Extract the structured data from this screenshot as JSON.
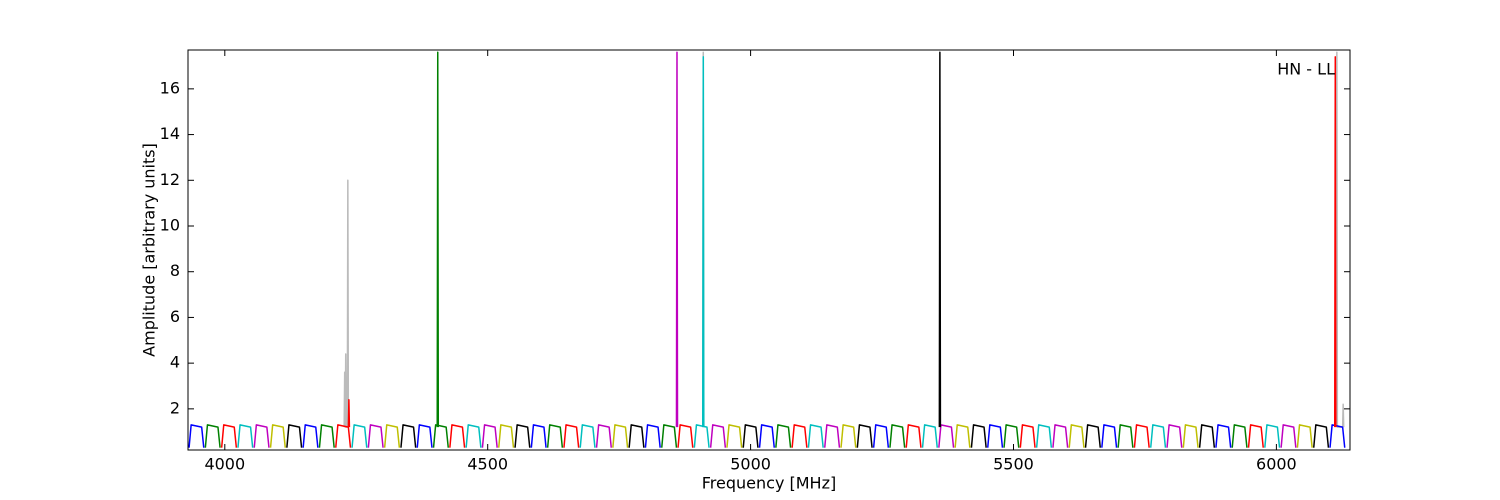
{
  "chart_data": {
    "type": "line",
    "xlabel": "Frequency [MHz]",
    "ylabel": "Amplitude [arbitrary units]",
    "annotation": "HN - LL",
    "xlim": [
      3930,
      6140
    ],
    "ylim": [
      0.2,
      17.7
    ],
    "xticks": [
      4000,
      4500,
      5000,
      5500,
      6000
    ],
    "yticks": [
      2,
      4,
      6,
      8,
      10,
      12,
      14,
      16
    ],
    "series": [
      {
        "color": "#bbbbbb",
        "x": [
          4227,
          4228,
          4229,
          4230,
          4231,
          4233,
          4234,
          4235
        ],
        "values": [
          1.2,
          3.6,
          1.2,
          4.4,
          1.2,
          1.2,
          12,
          1.2
        ]
      },
      {
        "color": "#bbbbbb",
        "x": [
          4909,
          4910,
          4911
        ],
        "values": [
          1.2,
          17.6,
          1.2
        ]
      },
      {
        "color": "#bbbbbb",
        "x": [
          6114,
          6115,
          6116,
          6126,
          6127,
          6128
        ],
        "values": [
          1.2,
          17.6,
          1.2,
          1.2,
          2.2,
          1.2
        ]
      },
      {
        "color": "#0000ff",
        "x": [
          3932,
          3936,
          3956,
          3960,
          3961,
          4149,
          4153,
          4173,
          4177,
          4178,
          4366,
          4370,
          4390,
          4394,
          4395,
          4583,
          4587,
          4607,
          4611,
          4612,
          4800,
          4804,
          4824,
          4828,
          4829,
          5017,
          5021,
          5041,
          5045,
          5046,
          5234,
          5238,
          5258,
          5262,
          5263,
          5451,
          5455,
          5475,
          5479,
          5480,
          5668,
          5672,
          5692,
          5696,
          5697,
          5885,
          5889,
          5909,
          5913,
          5914,
          6102,
          6106,
          6126,
          6130
        ],
        "values": [
          0.3,
          1.3,
          1.2,
          0.3,
          null,
          0.3,
          1.3,
          1.2,
          0.3,
          null,
          0.3,
          1.3,
          1.2,
          0.3,
          null,
          0.3,
          1.3,
          1.2,
          0.3,
          null,
          0.3,
          1.3,
          1.2,
          0.3,
          null,
          0.3,
          1.3,
          1.2,
          0.3,
          null,
          0.3,
          1.3,
          1.2,
          0.3,
          null,
          0.3,
          1.3,
          1.2,
          0.3,
          null,
          0.3,
          1.3,
          1.2,
          0.3,
          null,
          0.3,
          1.3,
          1.2,
          0.3,
          null,
          0.3,
          1.3,
          1.2,
          0.3
        ]
      },
      {
        "color": "#008000",
        "x": [
          3963,
          3967,
          3987,
          3991,
          3992,
          4180,
          4184,
          4204,
          4208,
          4209,
          4397,
          4401,
          4421,
          4425,
          4426,
          4614,
          4618,
          4638,
          4642,
          4643,
          4831,
          4835,
          4855,
          4859,
          4860,
          5048,
          5052,
          5072,
          5076,
          5077,
          5265,
          5269,
          5289,
          5293,
          5294,
          5482,
          5486,
          5506,
          5510,
          5511,
          5699,
          5703,
          5723,
          5727,
          5728,
          5916,
          5920,
          5940,
          5944
        ],
        "values": [
          0.3,
          1.3,
          1.2,
          0.3,
          null,
          0.3,
          1.3,
          1.2,
          0.3,
          null,
          0.3,
          1.3,
          1.2,
          0.3,
          null,
          0.3,
          1.3,
          1.2,
          0.3,
          null,
          0.3,
          1.3,
          1.2,
          0.3,
          null,
          0.3,
          1.3,
          1.2,
          0.3,
          null,
          0.3,
          1.3,
          1.2,
          0.3,
          null,
          0.3,
          1.3,
          1.2,
          0.3,
          null,
          0.3,
          1.3,
          1.2,
          0.3,
          null,
          0.3,
          1.3,
          1.2,
          0.3
        ]
      },
      {
        "color": "#ff0000",
        "x": [
          3994,
          3998,
          4018,
          4022,
          4023,
          4211,
          4215,
          4235,
          4239,
          4240,
          4428,
          4432,
          4452,
          4456,
          4457,
          4645,
          4649,
          4669,
          4673,
          4674,
          4862,
          4866,
          4886,
          4890,
          4891,
          5079,
          5083,
          5103,
          5107,
          5108,
          5296,
          5300,
          5320,
          5324,
          5325,
          5513,
          5517,
          5537,
          5541,
          5542,
          5730,
          5734,
          5754,
          5758,
          5759,
          5947,
          5951,
          5971,
          5975
        ],
        "values": [
          0.3,
          1.3,
          1.2,
          0.3,
          null,
          0.3,
          1.3,
          1.2,
          0.3,
          null,
          0.3,
          1.3,
          1.2,
          0.3,
          null,
          0.3,
          1.3,
          1.2,
          0.3,
          null,
          0.3,
          1.3,
          1.2,
          0.3,
          null,
          0.3,
          1.3,
          1.2,
          0.3,
          null,
          0.3,
          1.3,
          1.2,
          0.3,
          null,
          0.3,
          1.3,
          1.2,
          0.3,
          null,
          0.3,
          1.3,
          1.2,
          0.3,
          null,
          0.3,
          1.3,
          1.2,
          0.3
        ]
      },
      {
        "color": "#00bfbf",
        "x": [
          4025,
          4029,
          4049,
          4053,
          4054,
          4242,
          4246,
          4266,
          4270,
          4271,
          4459,
          4463,
          4483,
          4487,
          4488,
          4676,
          4680,
          4700,
          4704,
          4705,
          4893,
          4897,
          4917,
          4921,
          4922,
          5110,
          5114,
          5134,
          5138,
          5139,
          5327,
          5331,
          5351,
          5355,
          5356,
          5544,
          5548,
          5568,
          5572,
          5573,
          5761,
          5765,
          5785,
          5789,
          5790,
          5978,
          5982,
          6002,
          6006
        ],
        "values": [
          0.3,
          1.3,
          1.2,
          0.3,
          null,
          0.3,
          1.3,
          1.2,
          0.3,
          null,
          0.3,
          1.3,
          1.2,
          0.3,
          null,
          0.3,
          1.3,
          1.2,
          0.3,
          null,
          0.3,
          1.3,
          1.2,
          0.3,
          null,
          0.3,
          1.3,
          1.2,
          0.3,
          null,
          0.3,
          1.3,
          1.2,
          0.3,
          null,
          0.3,
          1.3,
          1.2,
          0.3,
          null,
          0.3,
          1.3,
          1.2,
          0.3,
          null,
          0.3,
          1.3,
          1.2,
          0.3
        ]
      },
      {
        "color": "#bf00bf",
        "x": [
          4056,
          4060,
          4080,
          4084,
          4085,
          4273,
          4277,
          4297,
          4301,
          4302,
          4490,
          4494,
          4514,
          4518,
          4519,
          4707,
          4711,
          4731,
          4735,
          4736,
          4924,
          4928,
          4948,
          4952,
          4953,
          5141,
          5145,
          5165,
          5169,
          5170,
          5358,
          5362,
          5382,
          5386,
          5387,
          5575,
          5579,
          5599,
          5603,
          5604,
          5792,
          5796,
          5816,
          5820,
          5821,
          6009,
          6013,
          6033,
          6037
        ],
        "values": [
          0.3,
          1.3,
          1.2,
          0.3,
          null,
          0.3,
          1.3,
          1.2,
          0.3,
          null,
          0.3,
          1.3,
          1.2,
          0.3,
          null,
          0.3,
          1.3,
          1.2,
          0.3,
          null,
          0.3,
          1.3,
          1.2,
          0.3,
          null,
          0.3,
          1.3,
          1.2,
          0.3,
          null,
          0.3,
          1.3,
          1.2,
          0.3,
          null,
          0.3,
          1.3,
          1.2,
          0.3,
          null,
          0.3,
          1.3,
          1.2,
          0.3,
          null,
          0.3,
          1.3,
          1.2,
          0.3
        ]
      },
      {
        "color": "#bfbf00",
        "x": [
          4087,
          4091,
          4111,
          4115,
          4116,
          4304,
          4308,
          4328,
          4332,
          4333,
          4521,
          4525,
          4545,
          4549,
          4550,
          4738,
          4742,
          4762,
          4766,
          4767,
          4955,
          4959,
          4979,
          4983,
          4984,
          5172,
          5176,
          5196,
          5200,
          5201,
          5389,
          5393,
          5413,
          5417,
          5418,
          5606,
          5610,
          5630,
          5634,
          5635,
          5823,
          5827,
          5847,
          5851,
          5852,
          6040,
          6044,
          6064,
          6068
        ],
        "values": [
          0.3,
          1.3,
          1.2,
          0.3,
          null,
          0.3,
          1.3,
          1.2,
          0.3,
          null,
          0.3,
          1.3,
          1.2,
          0.3,
          null,
          0.3,
          1.3,
          1.2,
          0.3,
          null,
          0.3,
          1.3,
          1.2,
          0.3,
          null,
          0.3,
          1.3,
          1.2,
          0.3,
          null,
          0.3,
          1.3,
          1.2,
          0.3,
          null,
          0.3,
          1.3,
          1.2,
          0.3,
          null,
          0.3,
          1.3,
          1.2,
          0.3,
          null,
          0.3,
          1.3,
          1.2,
          0.3
        ]
      },
      {
        "color": "#000000",
        "x": [
          4118,
          4122,
          4142,
          4146,
          4147,
          4335,
          4339,
          4359,
          4363,
          4364,
          4552,
          4556,
          4576,
          4580,
          4581,
          4769,
          4773,
          4793,
          4797,
          4798,
          4986,
          4990,
          5010,
          5014,
          5015,
          5203,
          5207,
          5227,
          5231,
          5232,
          5420,
          5424,
          5444,
          5448,
          5449,
          5637,
          5641,
          5661,
          5665,
          5666,
          5854,
          5858,
          5878,
          5882,
          5883,
          6071,
          6075,
          6095,
          6099
        ],
        "values": [
          0.3,
          1.3,
          1.2,
          0.3,
          null,
          0.3,
          1.3,
          1.2,
          0.3,
          null,
          0.3,
          1.3,
          1.2,
          0.3,
          null,
          0.3,
          1.3,
          1.2,
          0.3,
          null,
          0.3,
          1.3,
          1.2,
          0.3,
          null,
          0.3,
          1.3,
          1.2,
          0.3,
          null,
          0.3,
          1.3,
          1.2,
          0.3,
          null,
          0.3,
          1.3,
          1.2,
          0.3,
          null,
          0.3,
          1.3,
          1.2,
          0.3,
          null,
          0.3,
          1.3,
          1.2,
          0.3
        ]
      },
      {
        "color": "#ff0000",
        "x": [
          4235,
          4236,
          4237
        ],
        "values": [
          1.2,
          2.4,
          1.2
        ]
      },
      {
        "color": "#008000",
        "x": [
          4404,
          4405,
          4406
        ],
        "values": [
          1.2,
          17.6,
          1.2
        ]
      },
      {
        "color": "#bf00bf",
        "x": [
          4859,
          4860,
          4861
        ],
        "values": [
          1.2,
          17.6,
          1.2
        ]
      },
      {
        "color": "#00bfbf",
        "x": [
          4909,
          4910,
          4911
        ],
        "values": [
          1.2,
          17.4,
          1.2
        ]
      },
      {
        "color": "#000000",
        "x": [
          5359,
          5360,
          5361
        ],
        "values": [
          1.2,
          17.6,
          1.2
        ]
      },
      {
        "color": "#ff0000",
        "x": [
          6111,
          6112,
          6113
        ],
        "values": [
          1.2,
          17.4,
          1.2
        ]
      }
    ]
  }
}
